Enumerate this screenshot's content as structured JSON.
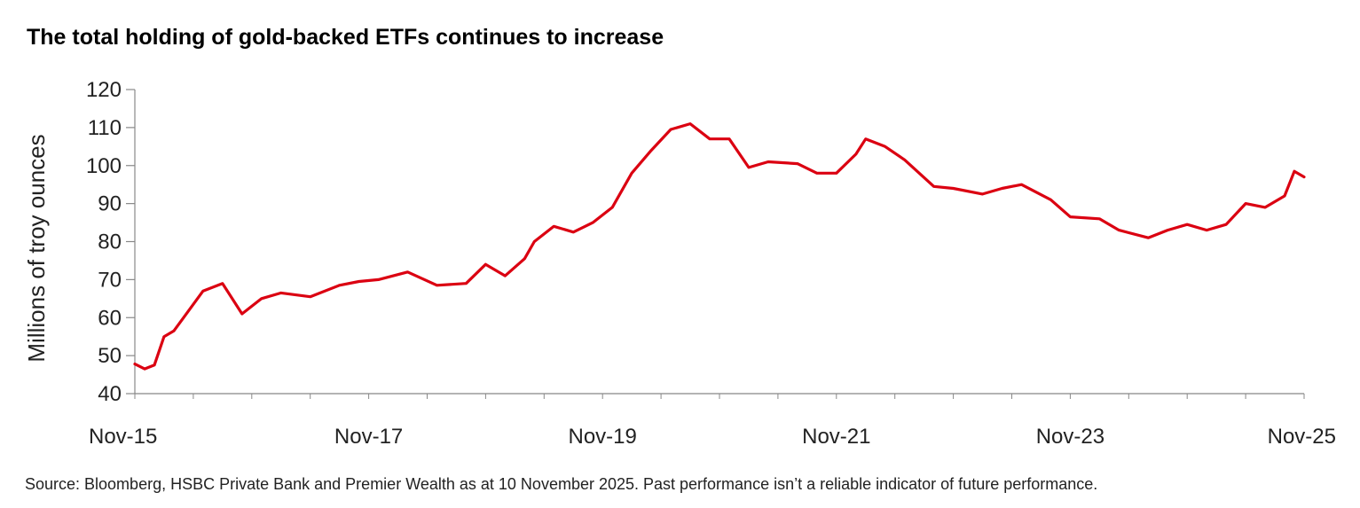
{
  "title": "The total holding of gold-backed ETFs continues to increase",
  "source": "Source: Bloomberg, HSBC Private Bank and Premier Wealth as at 10 November 2025. Past performance isn’t a reliable indicator of future performance.",
  "chart_data": {
    "type": "line",
    "ylabel": "Millions of troy ounces",
    "xlabel": "",
    "ylim": [
      40,
      120
    ],
    "yticks": [
      40,
      50,
      60,
      70,
      80,
      90,
      100,
      110,
      120
    ],
    "xlim": [
      "2015-11",
      "2025-11"
    ],
    "xtick_labels": [
      "Nov-15",
      "Nov-17",
      "Nov-19",
      "Nov-21",
      "Nov-23",
      "Nov-25"
    ],
    "grid": false,
    "line_color": "#db0011",
    "series": [
      {
        "x": [
          "2015-11",
          "2015-12",
          "2016-01",
          "2016-02",
          "2016-03",
          "2016-04",
          "2016-06",
          "2016-08",
          "2016-10",
          "2016-12",
          "2017-02",
          "2017-05",
          "2017-08",
          "2017-10",
          "2017-12",
          "2018-03",
          "2018-06",
          "2018-09",
          "2018-11",
          "2019-01",
          "2019-03",
          "2019-04",
          "2019-06",
          "2019-08",
          "2019-10",
          "2019-12",
          "2020-02",
          "2020-04",
          "2020-06",
          "2020-08",
          "2020-10",
          "2020-12",
          "2021-02",
          "2021-04",
          "2021-07",
          "2021-09",
          "2021-11",
          "2022-01",
          "2022-02",
          "2022-04",
          "2022-06",
          "2022-09",
          "2022-11",
          "2023-02",
          "2023-04",
          "2023-06",
          "2023-09",
          "2023-11",
          "2024-02",
          "2024-04",
          "2024-07",
          "2024-09",
          "2024-11",
          "2025-01",
          "2025-03",
          "2025-05",
          "2025-07",
          "2025-09",
          "2025-10",
          "2025-11"
        ],
        "values": [
          47.8,
          46.5,
          47.5,
          55,
          56.5,
          60,
          67,
          69,
          61,
          65,
          66.5,
          65.5,
          68.5,
          69.5,
          70,
          72,
          68.5,
          69,
          74,
          71,
          75.5,
          80,
          84,
          82.5,
          85,
          89,
          98,
          104,
          109.5,
          111,
          107,
          107,
          99.5,
          101,
          100.5,
          98,
          98,
          103,
          107,
          105,
          101.5,
          94.5,
          94,
          92.5,
          94,
          95,
          91,
          86.5,
          86,
          83,
          81,
          83,
          84.5,
          83,
          84.5,
          90,
          89,
          92,
          98.5,
          97
        ]
      }
    ]
  }
}
